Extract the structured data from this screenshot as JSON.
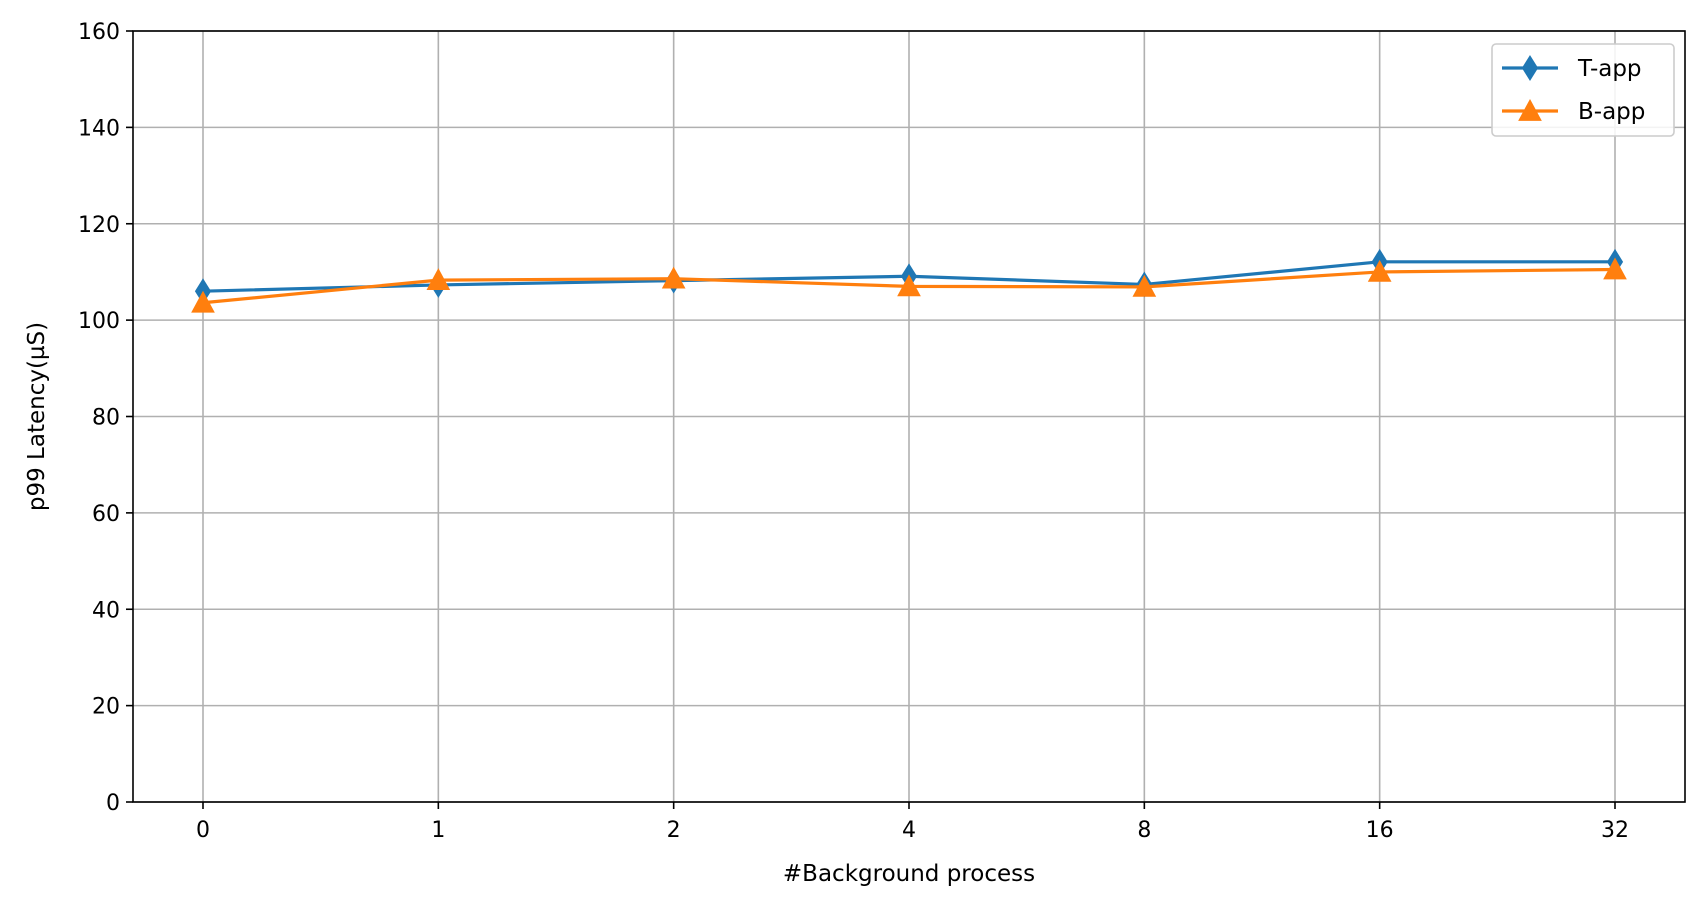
{
  "chart_data": {
    "type": "line",
    "title": "",
    "xlabel": "#Background process",
    "ylabel": "p99 Latency(µS)",
    "categories": [
      "0",
      "1",
      "2",
      "4",
      "8",
      "16",
      "32"
    ],
    "ylim": [
      0,
      160
    ],
    "yticks": [
      0,
      20,
      40,
      60,
      80,
      100,
      120,
      140,
      160
    ],
    "grid": true,
    "legend_position": "top-right",
    "series": [
      {
        "name": "T-app",
        "values": [
          106.0,
          107.3,
          108.2,
          109.1,
          107.4,
          112.1,
          112.1
        ],
        "color": "#1f77b4",
        "marker": "thin-diamond"
      },
      {
        "name": "B-app",
        "values": [
          103.6,
          108.3,
          108.6,
          107.0,
          106.9,
          110.0,
          110.5
        ],
        "color": "#ff7f0e",
        "marker": "triangle-up"
      }
    ]
  }
}
